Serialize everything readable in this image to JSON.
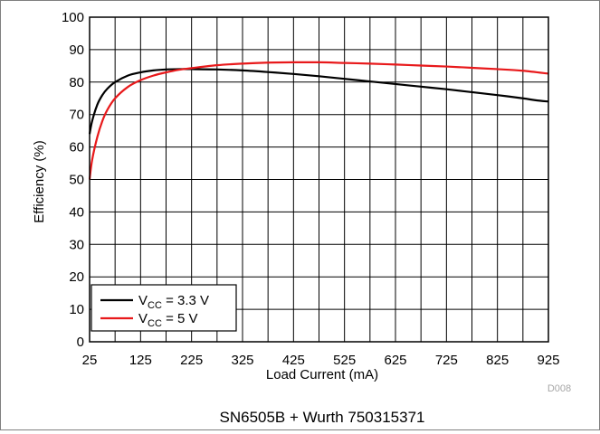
{
  "chart_data": {
    "type": "line",
    "xlabel": "Load Current (mA)",
    "ylabel": "Efficiency (%)",
    "xlim": [
      25,
      925
    ],
    "ylim": [
      0,
      100
    ],
    "x_ticks": [
      25,
      125,
      225,
      325,
      425,
      525,
      625,
      725,
      825,
      925
    ],
    "y_ticks": [
      0,
      10,
      20,
      30,
      40,
      50,
      60,
      70,
      80,
      90,
      100
    ],
    "grid": true,
    "legend_position": "bottom-left",
    "figure_id": "D008",
    "caption": "SN6505B + Wurth 750315371",
    "series": [
      {
        "name": "VCC = 3.3 V",
        "legend_main": "V",
        "legend_sub": "CC",
        "legend_rest": " = 3.3 V",
        "color": "#000000",
        "x": [
          25,
          30,
          40,
          50,
          60,
          75,
          100,
          125,
          150,
          175,
          200,
          225,
          275,
          325,
          375,
          425,
          475,
          525,
          575,
          625,
          675,
          725,
          775,
          825,
          875,
          900,
          925
        ],
        "y": [
          64,
          68,
          73,
          76,
          78,
          80,
          82,
          83,
          83.6,
          83.9,
          84,
          84,
          83.9,
          83.6,
          83.1,
          82.5,
          81.8,
          81,
          80.2,
          79.4,
          78.6,
          77.8,
          76.9,
          76,
          75,
          74.4,
          74
        ]
      },
      {
        "name": "VCC = 5 V",
        "legend_main": "V",
        "legend_sub": "CC",
        "legend_rest": " = 5 V",
        "color": "#e8191b",
        "x": [
          25,
          30,
          40,
          50,
          60,
          75,
          100,
          125,
          150,
          175,
          200,
          225,
          275,
          325,
          375,
          425,
          475,
          525,
          575,
          625,
          675,
          725,
          775,
          825,
          875,
          925
        ],
        "y": [
          50,
          56,
          63,
          68,
          71.5,
          75,
          78.5,
          80.6,
          82,
          83,
          83.8,
          84.3,
          85.2,
          85.7,
          86,
          86.1,
          86.1,
          85.9,
          85.7,
          85.4,
          85.1,
          84.8,
          84.4,
          84,
          83.5,
          82.6
        ]
      }
    ]
  }
}
